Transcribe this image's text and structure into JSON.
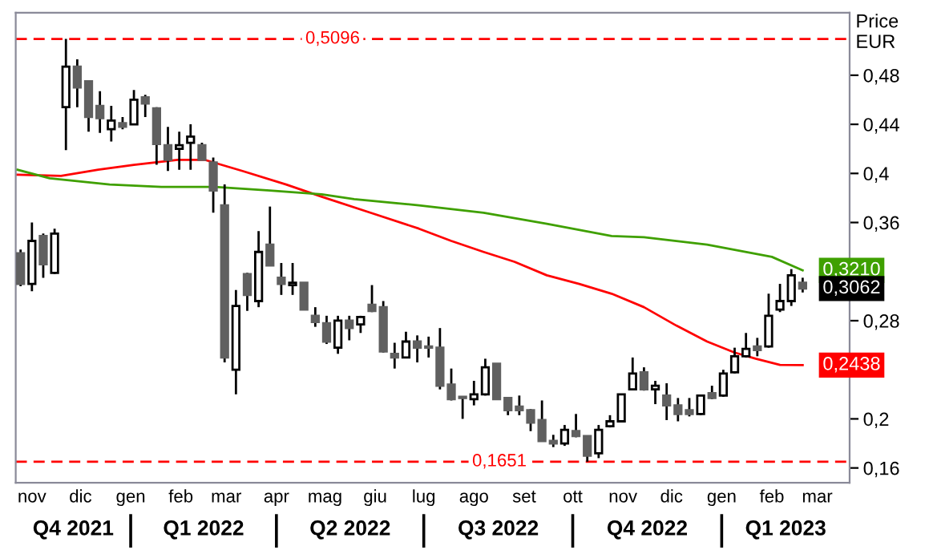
{
  "chart_data": {
    "type": "candlestick",
    "ylabel": "Price EUR",
    "x": [
      "2021-10-25",
      "2021-11-01",
      "2021-11-08",
      "2021-11-15",
      "2021-11-22",
      "2021-11-29",
      "2021-12-06",
      "2021-12-13",
      "2021-12-20",
      "2021-12-27",
      "2022-01-03",
      "2022-01-10",
      "2022-01-17",
      "2022-01-24",
      "2022-01-31",
      "2022-02-07",
      "2022-02-14",
      "2022-02-21",
      "2022-02-28",
      "2022-03-07",
      "2022-03-14",
      "2022-03-21",
      "2022-03-28",
      "2022-04-04",
      "2022-04-11",
      "2022-04-18",
      "2022-04-25",
      "2022-05-02",
      "2022-05-09",
      "2022-05-16",
      "2022-05-23",
      "2022-05-30",
      "2022-06-06",
      "2022-06-13",
      "2022-06-20",
      "2022-06-27",
      "2022-07-04",
      "2022-07-11",
      "2022-07-18",
      "2022-07-25",
      "2022-08-01",
      "2022-08-08",
      "2022-08-15",
      "2022-08-22",
      "2022-08-29",
      "2022-09-05",
      "2022-09-12",
      "2022-09-19",
      "2022-09-26",
      "2022-10-03",
      "2022-10-10",
      "2022-10-17",
      "2022-10-24",
      "2022-10-31",
      "2022-11-07",
      "2022-11-14",
      "2022-11-21",
      "2022-11-28",
      "2022-12-05",
      "2022-12-12",
      "2022-12-19",
      "2022-12-26",
      "2023-01-02",
      "2023-01-09",
      "2023-01-16",
      "2023-01-23",
      "2023-01-30",
      "2023-02-06",
      "2023-02-13",
      "2023-02-20"
    ],
    "ohlc": [
      [
        0.335,
        0.338,
        0.308,
        0.31
      ],
      [
        0.31,
        0.36,
        0.304,
        0.345
      ],
      [
        0.349,
        0.351,
        0.315,
        0.326
      ],
      [
        0.319,
        0.355,
        0.318,
        0.351
      ],
      [
        0.454,
        0.5096,
        0.419,
        0.487
      ],
      [
        0.487,
        0.493,
        0.454,
        0.47
      ],
      [
        0.475,
        0.475,
        0.434,
        0.446
      ],
      [
        0.455,
        0.467,
        0.433,
        0.445
      ],
      [
        0.436,
        0.455,
        0.426,
        0.443
      ],
      [
        0.441,
        0.446,
        0.436,
        0.438
      ],
      [
        0.44,
        0.468,
        0.44,
        0.46
      ],
      [
        0.462,
        0.464,
        0.446,
        0.457
      ],
      [
        0.453,
        0.454,
        0.407,
        0.424
      ],
      [
        0.423,
        0.438,
        0.402,
        0.411
      ],
      [
        0.42,
        0.434,
        0.403,
        0.423
      ],
      [
        0.425,
        0.44,
        0.403,
        0.43
      ],
      [
        0.423,
        0.425,
        0.411,
        0.411
      ],
      [
        0.409,
        0.413,
        0.368,
        0.386
      ],
      [
        0.374,
        0.391,
        0.246,
        0.25
      ],
      [
        0.24,
        0.305,
        0.22,
        0.292
      ],
      [
        0.318,
        0.319,
        0.288,
        0.301
      ],
      [
        0.296,
        0.353,
        0.291,
        0.336
      ],
      [
        0.342,
        0.373,
        0.325,
        0.325
      ],
      [
        0.315,
        0.327,
        0.301,
        0.31
      ],
      [
        0.309,
        0.327,
        0.301,
        0.311
      ],
      [
        0.311,
        0.311,
        0.289,
        0.289
      ],
      [
        0.284,
        0.291,
        0.275,
        0.279
      ],
      [
        0.278,
        0.284,
        0.261,
        0.263
      ],
      [
        0.258,
        0.284,
        0.253,
        0.28
      ],
      [
        0.28,
        0.284,
        0.264,
        0.274
      ],
      [
        0.277,
        0.284,
        0.27,
        0.283
      ],
      [
        0.293,
        0.309,
        0.287,
        0.288
      ],
      [
        0.291,
        0.296,
        0.254,
        0.255
      ],
      [
        0.253,
        0.262,
        0.241,
        0.25
      ],
      [
        0.25,
        0.271,
        0.25,
        0.263
      ],
      [
        0.263,
        0.268,
        0.246,
        0.258
      ],
      [
        0.259,
        0.267,
        0.25,
        0.258
      ],
      [
        0.258,
        0.274,
        0.224,
        0.227
      ],
      [
        0.228,
        0.241,
        0.215,
        0.216
      ],
      [
        0.218,
        0.218,
        0.2,
        0.217
      ],
      [
        0.216,
        0.231,
        0.211,
        0.22
      ],
      [
        0.22,
        0.249,
        0.219,
        0.242
      ],
      [
        0.245,
        0.245,
        0.216,
        0.216
      ],
      [
        0.217,
        0.217,
        0.203,
        0.207
      ],
      [
        0.21,
        0.219,
        0.203,
        0.207
      ],
      [
        0.207,
        0.208,
        0.19,
        0.197
      ],
      [
        0.199,
        0.215,
        0.182,
        0.182
      ],
      [
        0.182,
        0.187,
        0.177,
        0.18
      ],
      [
        0.18,
        0.195,
        0.178,
        0.191
      ],
      [
        0.19,
        0.204,
        0.185,
        0.186
      ],
      [
        0.186,
        0.186,
        0.1651,
        0.17
      ],
      [
        0.172,
        0.195,
        0.168,
        0.191
      ],
      [
        0.194,
        0.203,
        0.193,
        0.198
      ],
      [
        0.198,
        0.22,
        0.197,
        0.22
      ],
      [
        0.224,
        0.25,
        0.224,
        0.237
      ],
      [
        0.238,
        0.242,
        0.223,
        0.224
      ],
      [
        0.224,
        0.231,
        0.212,
        0.227
      ],
      [
        0.219,
        0.229,
        0.199,
        0.211
      ],
      [
        0.211,
        0.217,
        0.198,
        0.204
      ],
      [
        0.207,
        0.217,
        0.202,
        0.204
      ],
      [
        0.204,
        0.219,
        0.203,
        0.219
      ],
      [
        0.221,
        0.227,
        0.216,
        0.217
      ],
      [
        0.219,
        0.24,
        0.218,
        0.237
      ],
      [
        0.238,
        0.258,
        0.237,
        0.251
      ],
      [
        0.251,
        0.27,
        0.25,
        0.257
      ],
      [
        0.259,
        0.266,
        0.251,
        0.256
      ],
      [
        0.259,
        0.302,
        0.258,
        0.284
      ],
      [
        0.289,
        0.31,
        0.287,
        0.296
      ],
      [
        0.296,
        0.322,
        0.292,
        0.317
      ],
      [
        0.311,
        0.315,
        0.303,
        0.3062
      ]
    ],
    "series": [
      {
        "type": "line",
        "color": "#ff0000",
        "x": [
          "2021-10-23",
          "2021-11-19",
          "2021-12-12",
          "2022-01-03",
          "2022-01-30",
          "2022-02-16",
          "2022-03-11",
          "2022-04-07",
          "2022-04-29",
          "2022-05-29",
          "2022-06-28",
          "2022-07-18",
          "2022-08-07",
          "2022-08-26",
          "2022-09-15",
          "2022-10-05",
          "2022-10-25",
          "2022-11-14",
          "2022-12-04",
          "2022-12-23",
          "2023-01-09",
          "2023-01-22",
          "2023-02-06",
          "2023-02-20"
        ],
        "values": [
          0.399,
          0.398,
          0.403,
          0.407,
          0.411,
          0.411,
          0.402,
          0.391,
          0.381,
          0.368,
          0.355,
          0.345,
          0.336,
          0.328,
          0.317,
          0.31,
          0.302,
          0.291,
          0.276,
          0.263,
          0.254,
          0.249,
          0.244,
          0.2438
        ],
        "value_labels": [
          null,
          null,
          null,
          null,
          null,
          null,
          null,
          null,
          null,
          null,
          null,
          null,
          null,
          null,
          null,
          null,
          null,
          null,
          null,
          null,
          null,
          null,
          null,
          "0,2438"
        ]
      },
      {
        "type": "line",
        "color": "#3fa000",
        "x": [
          "2021-10-23",
          "2021-11-12",
          "2021-12-19",
          "2022-01-20",
          "2022-02-22",
          "2022-03-28",
          "2022-04-29",
          "2022-05-19",
          "2022-06-28",
          "2022-08-07",
          "2022-09-15",
          "2022-10-25",
          "2022-11-14",
          "2022-12-23",
          "2023-02-01",
          "2023-02-20"
        ],
        "values": [
          0.403,
          0.396,
          0.391,
          0.389,
          0.389,
          0.386,
          0.383,
          0.379,
          0.374,
          0.368,
          0.359,
          0.349,
          0.348,
          0.342,
          0.332,
          0.321
        ],
        "value_labels": [
          null,
          null,
          null,
          null,
          null,
          null,
          null,
          null,
          null,
          null,
          null,
          null,
          null,
          null,
          null,
          "0,3210"
        ]
      }
    ],
    "xlim": [
      "2021-10-22",
      "2023-03-21"
    ],
    "xticks": [
      {
        "value": "2021-11-01",
        "label": "nov"
      },
      {
        "value": "2021-12-01",
        "label": "dic"
      },
      {
        "value": "2022-01-01",
        "label": "gen"
      },
      {
        "value": "2022-02-01",
        "label": "feb"
      },
      {
        "value": "2022-03-01",
        "label": "mar"
      },
      {
        "value": "2022-04-01",
        "label": "apr"
      },
      {
        "value": "2022-05-01",
        "label": "mag"
      },
      {
        "value": "2022-06-01",
        "label": "giu"
      },
      {
        "value": "2022-07-01",
        "label": "lug"
      },
      {
        "value": "2022-08-01",
        "label": "ago"
      },
      {
        "value": "2022-09-01",
        "label": "set"
      },
      {
        "value": "2022-10-01",
        "label": "ott"
      },
      {
        "value": "2022-11-01",
        "label": "nov"
      },
      {
        "value": "2022-12-01",
        "label": "dic"
      },
      {
        "value": "2023-01-01",
        "label": "gen"
      },
      {
        "value": "2023-02-01",
        "label": "feb"
      },
      {
        "value": "2023-03-01",
        "label": "mar"
      }
    ],
    "ylim": [
      0.148,
      0.531
    ],
    "yticks": [
      {
        "value": 0.16,
        "label": "0,16"
      },
      {
        "value": 0.2,
        "label": "0,2"
      },
      {
        "value": 0.28,
        "label": "0,28"
      },
      {
        "value": 0.36,
        "label": "0,36"
      },
      {
        "value": 0.4,
        "label": "0,4"
      },
      {
        "value": 0.44,
        "label": "0,44"
      },
      {
        "value": 0.48,
        "label": "0,48"
      }
    ],
    "ref_lines": [
      {
        "axis": "y",
        "value": 0.5096,
        "label": "0,5096",
        "color": "#ff0000",
        "line_style": "dashed"
      },
      {
        "axis": "y",
        "value": 0.1651,
        "label": "0,1651",
        "color": "#ff0000",
        "line_style": "dashed"
      }
    ],
    "annotations": [
      "Q4 2021",
      "Q1 2022",
      "Q2 2022",
      "Q3 2022",
      "Q4 2022",
      "Q1 2023",
      {
        "text": "0,3062",
        "x": "2023-02-20",
        "y": 0.3062
      }
    ],
    "grid": false,
    "legend": false
  }
}
